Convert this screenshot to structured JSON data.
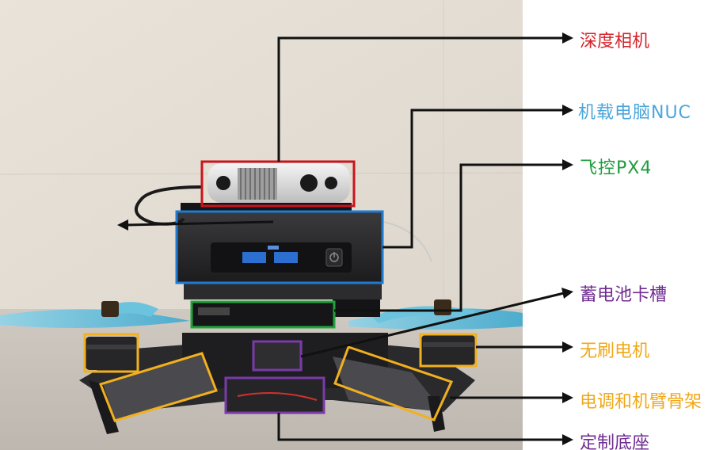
{
  "labels": {
    "depth_camera": {
      "text": "深度相机",
      "color": "#d4242a"
    },
    "onboard_nuc": {
      "text": "机载电脑NUC",
      "color": "#4aa6dc"
    },
    "flight_controller": {
      "text": "飞控PX4",
      "color": "#1f9c3c"
    },
    "battery_slot": {
      "text": "蓄电池卡槽",
      "color": "#6f2c91"
    },
    "brushless_motor": {
      "text": "无刷电机",
      "color": "#f0a818"
    },
    "esc_arm_frame": {
      "text": "电调和机臂骨架",
      "color": "#f0a818"
    },
    "custom_base": {
      "text": "定制底座",
      "color": "#6f2c91"
    }
  },
  "colors": {
    "box_red": "#c8141e",
    "box_blue": "#1f7bd0",
    "box_green": "#1fa33a",
    "box_purple": "#7a3aa8",
    "box_orange": "#f2b01e",
    "leader_line": "#111111"
  },
  "icons": {
    "usb": "usb-port-icon",
    "power": "power-button-icon"
  }
}
